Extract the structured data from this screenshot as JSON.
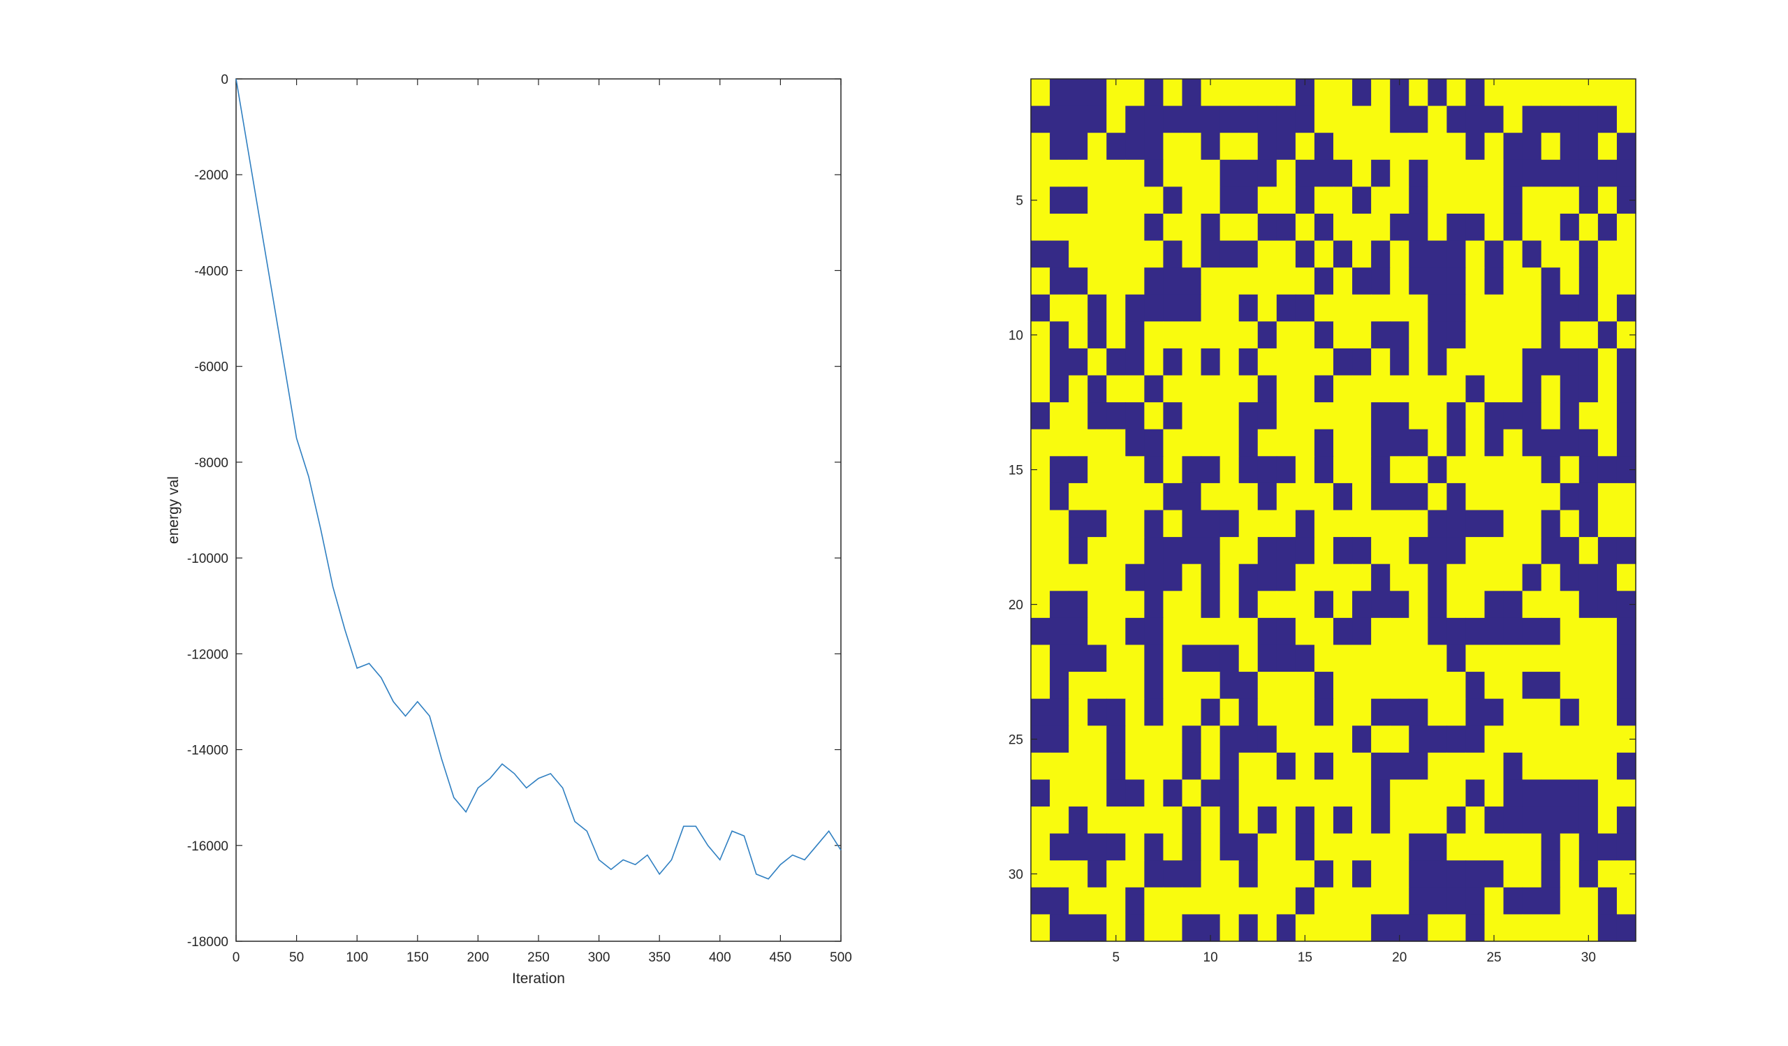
{
  "chart_data": [
    {
      "type": "line",
      "title": "",
      "xlabel": "Iteration",
      "ylabel": "energy val",
      "xlim": [
        0,
        500
      ],
      "ylim": [
        -18000,
        0
      ],
      "xticks": [
        0,
        50,
        100,
        150,
        200,
        250,
        300,
        350,
        400,
        450,
        500
      ],
      "yticks": [
        0,
        -2000,
        -4000,
        -6000,
        -8000,
        -10000,
        -12000,
        -14000,
        -16000,
        -18000
      ],
      "xtick_labels": [
        "0",
        "50",
        "100",
        "150",
        "200",
        "250",
        "300",
        "350",
        "400",
        "450",
        "500"
      ],
      "ytick_labels": [
        "0",
        "-2000",
        "-4000",
        "-6000",
        "-8000",
        "-10000",
        "-12000",
        "-14000",
        "-16000",
        "-18000"
      ],
      "grid": false,
      "series": [
        {
          "color": "#2f7fc1",
          "x": [
            0,
            10,
            20,
            30,
            40,
            50,
            60,
            70,
            80,
            90,
            100,
            110,
            120,
            130,
            140,
            150,
            160,
            170,
            180,
            190,
            200,
            210,
            220,
            230,
            240,
            250,
            260,
            270,
            280,
            290,
            300,
            310,
            320,
            330,
            340,
            350,
            360,
            370,
            380,
            390,
            400,
            410,
            420,
            430,
            440,
            450,
            460,
            470,
            480,
            490,
            500
          ],
          "y": [
            0,
            -1500,
            -3000,
            -4500,
            -6000,
            -7500,
            -8300,
            -9400,
            -10600,
            -11500,
            -12300,
            -12200,
            -12500,
            -13000,
            -13300,
            -13000,
            -13300,
            -14200,
            -15000,
            -15300,
            -14800,
            -14600,
            -14300,
            -14500,
            -14800,
            -14600,
            -14500,
            -14800,
            -15500,
            -15700,
            -16300,
            -16500,
            -16300,
            -16400,
            -16200,
            -16600,
            -16300,
            -15600,
            -15600,
            -16000,
            -16300,
            -15700,
            -15800,
            -16600,
            -16700,
            -16400,
            -16200,
            -16300,
            -16000,
            -15700,
            -16100
          ]
        }
      ]
    },
    {
      "type": "heatmap",
      "title": "",
      "xlim": [
        0.5,
        32.5
      ],
      "ylim": [
        0.5,
        32.5
      ],
      "xticks": [
        5,
        10,
        15,
        20,
        25,
        30
      ],
      "yticks": [
        5,
        10,
        15,
        20,
        25,
        30
      ],
      "xtick_labels": [
        "5",
        "10",
        "15",
        "20",
        "25",
        "30"
      ],
      "ytick_labels": [
        "5",
        "10",
        "15",
        "20",
        "25",
        "30"
      ],
      "colors": {
        "0": "#352a87",
        "1": "#f9fb0e"
      },
      "values": [
        "10001101011111011010101011111111",
        "00001000000000011110010001000001",
        "10010001101100101111111010010010",
        "11111101110001000101011110000000",
        "10011110110011011011011110111010",
        "11111101101100101110010010110101",
        "00111110100011010101000101011011",
        "10011100011111101001000101101011",
        "01101000011010011111100111100010",
        "10101011111101101100100111101101",
        "10010010101011110010101111000010",
        "10101101111101101111111011010010",
        "01100010111001111100110100010110",
        "11111001111011101100010101000010",
        "10011101001000101101101111101000",
        "10111110011101110100010111110011",
        "11001101000111011111100001101011",
        "11011100001100010011000111100100",
        "11111000101000111101101111010001",
        "10011101101011101000101100111000",
        "00011001111100110011100000001110",
        "10001101000100011111110111111110",
        "10111101110011101111111011001110",
        "00100101101011101100011001110110",
        "00110111010001111011000011111111",
        "11110111010110101100011110111110",
        "01110010100111111101111010000011",
        "11011111010101010101110100000010",
        "10000101010011011111001111101000",
        "11101100011011101011000001101011",
        "00111011111111011111000010001101",
        "10001011001010111100011011111100"
      ]
    }
  ]
}
